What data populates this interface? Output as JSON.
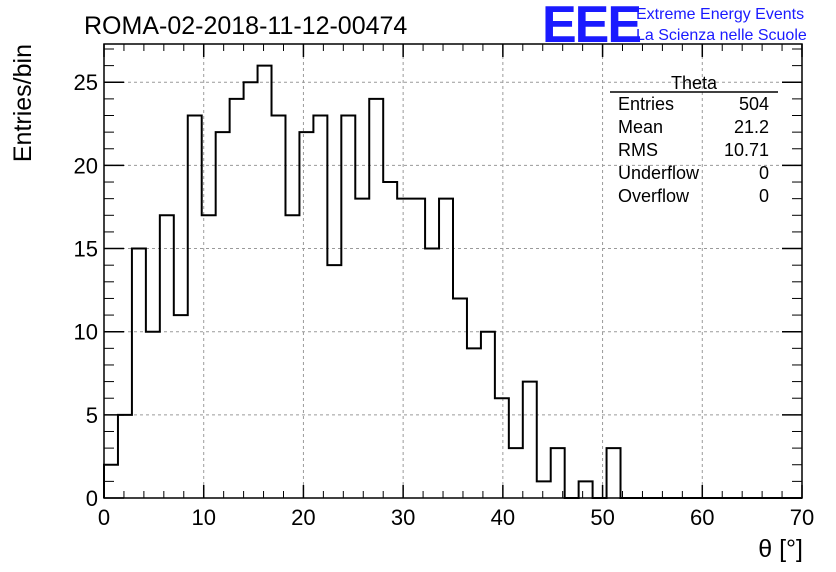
{
  "chart_data": {
    "type": "bar",
    "style": "step-histogram",
    "title": "ROMA-02-2018-11-12-00474",
    "xlabel": "θ [°]",
    "ylabel": "Entries/bin",
    "xlim": [
      0,
      70
    ],
    "ylim": [
      0,
      27.3
    ],
    "grid": true,
    "x_ticks": [
      "0",
      "10",
      "20",
      "30",
      "40",
      "50",
      "60",
      "70"
    ],
    "y_ticks": [
      "0",
      "5",
      "10",
      "15",
      "20",
      "25"
    ],
    "bin_width": 1.4,
    "values": [
      2,
      5,
      15,
      10,
      17,
      11,
      23,
      17,
      22,
      24,
      25,
      26,
      23,
      17,
      22,
      23,
      14,
      23,
      18,
      24,
      19,
      18,
      18,
      15,
      18,
      12,
      9,
      10,
      6,
      3,
      7,
      1,
      3,
      0,
      1,
      0,
      3,
      0,
      0,
      0,
      0,
      0,
      0,
      0,
      0,
      0,
      0,
      0,
      0,
      0
    ],
    "stats": {
      "name": "Theta",
      "rows": [
        {
          "label": "Entries",
          "value": "504"
        },
        {
          "label": "Mean",
          "value": "21.2"
        },
        {
          "label": "RMS",
          "value": "10.71"
        },
        {
          "label": "Underflow",
          "value": "0"
        },
        {
          "label": "Overflow",
          "value": "0"
        }
      ]
    }
  },
  "brand": {
    "logo": "EEE",
    "line1": "Extreme Energy Events",
    "line2": "La Scienza nelle Scuole",
    "color": "#1a1aff"
  }
}
